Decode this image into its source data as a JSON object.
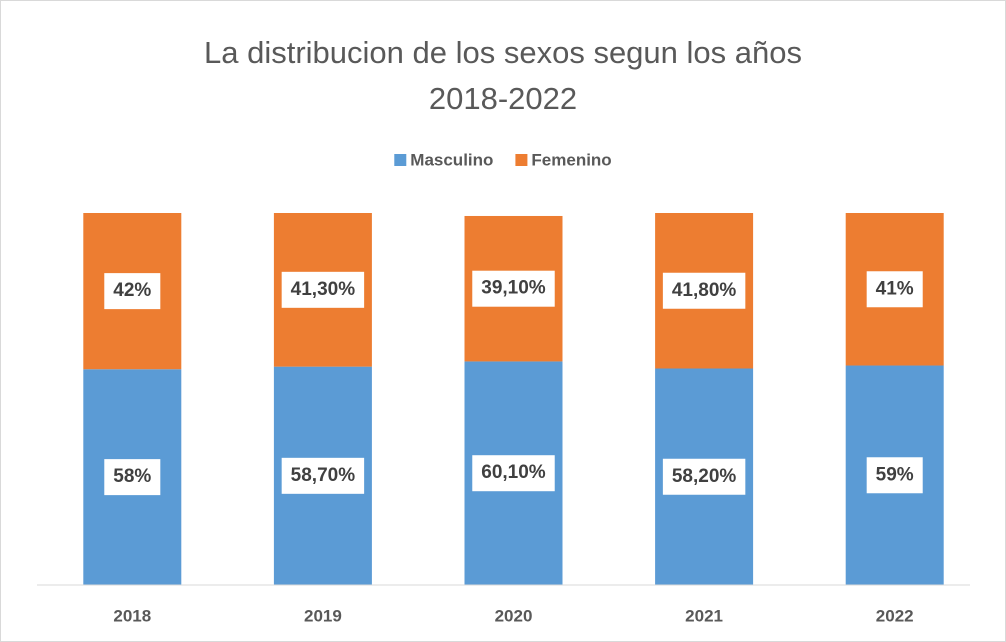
{
  "chart_data": {
    "type": "bar",
    "stacked": true,
    "title": [
      "La distribucion de los sexos segun los años",
      "2018-2022"
    ],
    "categories": [
      "2018",
      "2019",
      "2020",
      "2021",
      "2022"
    ],
    "series": [
      {
        "name": "Masculino",
        "color": "#5b9bd5",
        "values": [
          58,
          58.7,
          60.1,
          58.2,
          59
        ],
        "value_labels": [
          "58%",
          "58,70%",
          "60,10%",
          "58,20%",
          "59%"
        ]
      },
      {
        "name": "Femenino",
        "color": "#ed7d31",
        "values": [
          42,
          41.3,
          39.1,
          41.8,
          41
        ],
        "value_labels": [
          "42%",
          "41,30%",
          "39,10%",
          "41,80%",
          "41%"
        ]
      }
    ],
    "ylim": [
      0,
      100
    ],
    "legend": "top"
  }
}
